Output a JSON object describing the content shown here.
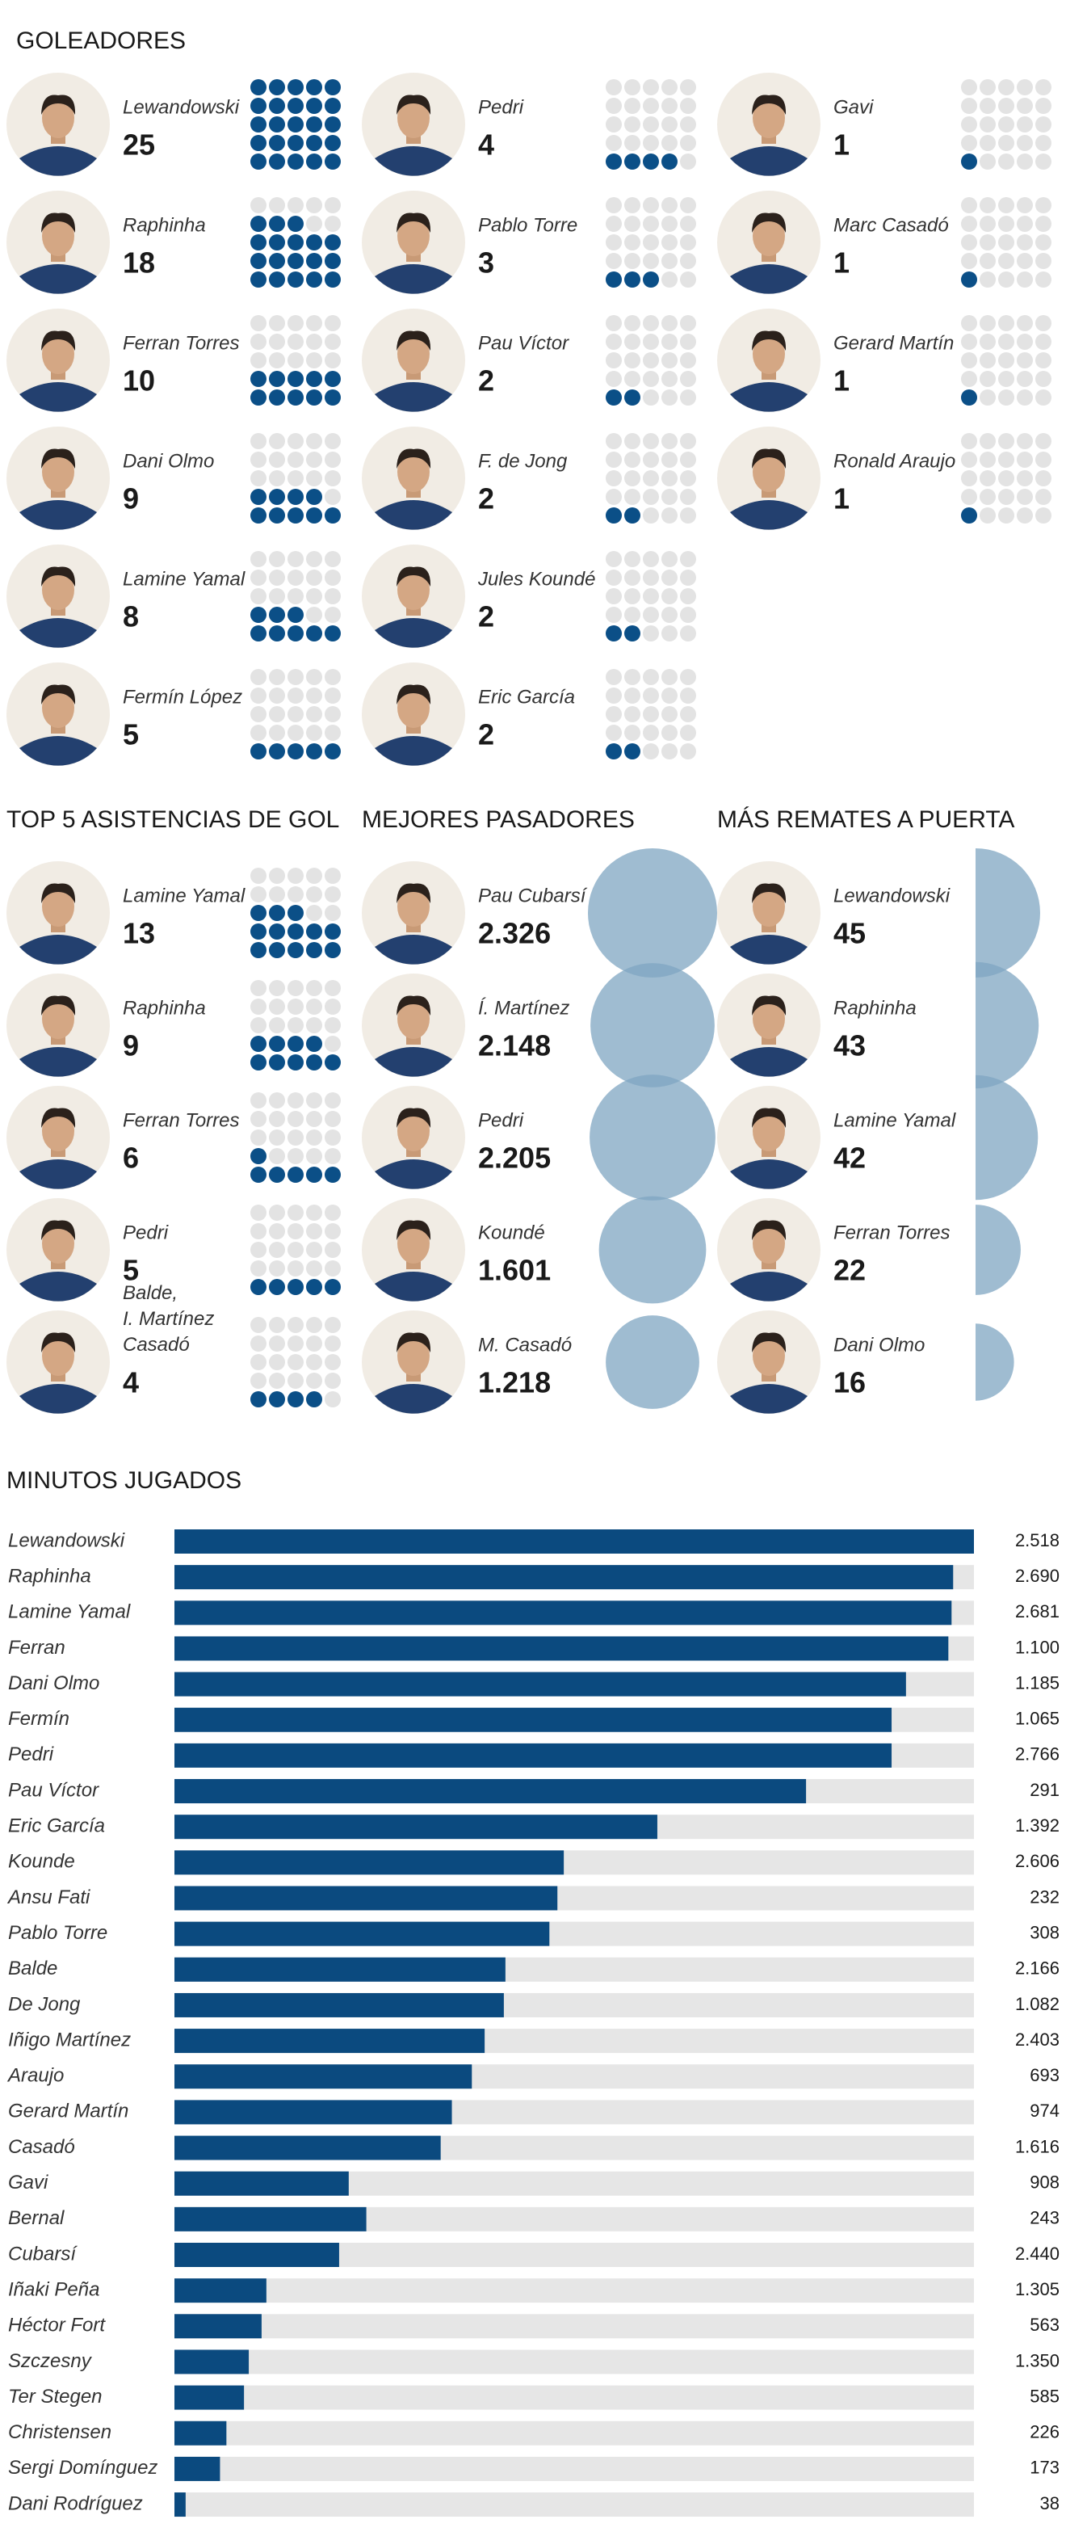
{
  "chart_data": [
    {
      "type": "waffle",
      "title": "GOLEADORES",
      "categories": [
        "Lewandowski",
        "Raphinha",
        "Ferran Torres",
        "Dani Olmo",
        "Lamine Yamal",
        "Fermín López",
        "Pedri",
        "Pablo Torre",
        "Pau Víctor",
        "F. de Jong",
        "Jules Koundé",
        "Eric García",
        "Gavi",
        "Marc Casadó",
        "Gerard Martín",
        "Ronald Araujo"
      ],
      "values": [
        25,
        18,
        10,
        9,
        8,
        5,
        4,
        3,
        2,
        2,
        2,
        2,
        1,
        1,
        1,
        1
      ],
      "color": "#0b4f87",
      "track_color": "#e3e3e3"
    },
    {
      "type": "waffle",
      "title": "TOP 5 ASISTENCIAS DE GOL",
      "categories": [
        "Lamine Yamal",
        "Raphinha",
        "Ferran Torres",
        "Pedri",
        "Balde,\nI. Martínez\nCasadó"
      ],
      "values": [
        13,
        9,
        6,
        5,
        4
      ],
      "color": "#0b4f87",
      "track_color": "#e3e3e3"
    },
    {
      "type": "bubble",
      "title": "MEJORES PASADORES",
      "categories": [
        "Pau Cubarsí",
        "Í. Martínez",
        "Pedri",
        "Koundé",
        "M. Casadó"
      ],
      "values": [
        2326,
        2148,
        2205,
        1601,
        1218
      ],
      "value_labels": [
        "2.326",
        "2.148",
        "2.205",
        "1.601",
        "1.218"
      ],
      "color": "#7fa5c2"
    },
    {
      "type": "half-bubble",
      "title": "MÁS REMATES A PUERTA",
      "categories": [
        "Lewandowski",
        "Raphinha",
        "Lamine Yamal",
        "Ferran Torres",
        "Dani Olmo"
      ],
      "values": [
        45,
        43,
        42,
        22,
        16
      ],
      "color": "#7fa5c2"
    },
    {
      "type": "bar",
      "title": "MINUTOS JUGADOS",
      "categories": [
        "Lewandowski",
        "Raphinha",
        "Lamine Yamal",
        "Ferran",
        "Dani Olmo",
        "Fermín",
        "Pedri",
        "Pau Víctor",
        "Eric García",
        "Kounde",
        "Ansu Fati",
        "Pablo Torre",
        "Balde",
        "De Jong",
        "Iñigo Martínez",
        "Araujo",
        "Gerard Martín",
        "Casadó",
        "Gavi",
        "Bernal",
        "Cubarsí",
        "Iñaki Peña",
        "Héctor Fort",
        "Szczesny",
        "Ter Stegen",
        "Christensen",
        "Sergi Domínguez",
        "Dani Rodríguez"
      ],
      "values": [
        100,
        97.4,
        97.2,
        96.8,
        91.5,
        89.7,
        89.7,
        79.0,
        60.4,
        48.7,
        47.9,
        46.9,
        41.4,
        41.2,
        38.8,
        37.2,
        34.7,
        33.3,
        21.8,
        24.0,
        20.6,
        11.5,
        10.9,
        9.3,
        8.7,
        6.5,
        5.7,
        1.4
      ],
      "printed_totals": [
        "2.518",
        "2.690",
        "2.681",
        "1.100",
        "1.185",
        "1.065",
        "2.766",
        "291",
        "1.392",
        "2.606",
        "232",
        "308",
        "2.166",
        "1.082",
        "2.403",
        "693",
        "974",
        "1.616",
        "908",
        "243",
        "2.440",
        "1.305",
        "563",
        "1.350",
        "585",
        "226",
        "173",
        "38"
      ],
      "xlim": [
        0,
        100
      ],
      "color": "#0b4a7f",
      "track_color": "#e6e6e6"
    }
  ]
}
